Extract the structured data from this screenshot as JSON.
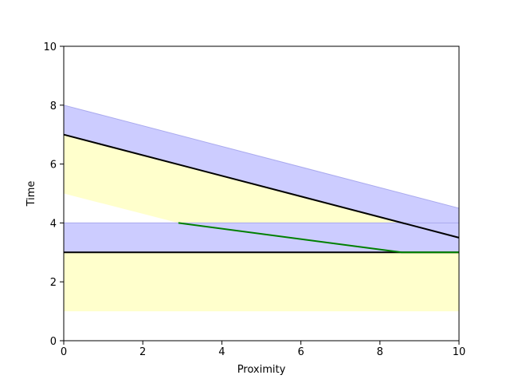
{
  "chart_data": {
    "type": "line",
    "title": "",
    "xlabel": "Proximity",
    "ylabel": "Time",
    "xlim": [
      0,
      10
    ],
    "ylim": [
      0,
      10
    ],
    "xticks": [
      0,
      2,
      4,
      6,
      8,
      10
    ],
    "yticks": [
      0,
      2,
      4,
      6,
      8,
      10
    ],
    "grid": false,
    "bands": [
      {
        "color": "#ccccff",
        "edge_color": "#aaaaee",
        "upper": [
          [
            0,
            8
          ],
          [
            10,
            4.5
          ]
        ],
        "lower": [
          [
            0,
            7
          ],
          [
            10,
            3.5
          ]
        ]
      },
      {
        "color": "#ffffcc",
        "edge_color": "none",
        "upper": [
          [
            0,
            7
          ],
          [
            10,
            3.5
          ]
        ],
        "lower": [
          [
            0,
            5
          ],
          [
            2.9,
            4
          ],
          [
            10,
            4
          ]
        ]
      },
      {
        "color": "#ccccff",
        "edge_color": "#aaaaee",
        "upper": [
          [
            0,
            4
          ],
          [
            2.9,
            4
          ],
          [
            10,
            4
          ]
        ],
        "lower": [
          [
            0,
            3
          ],
          [
            10,
            3
          ]
        ]
      },
      {
        "color": "#ffffcc",
        "edge_color": "none",
        "upper": [
          [
            0,
            3
          ],
          [
            10,
            3
          ]
        ],
        "lower": [
          [
            0,
            1
          ],
          [
            10,
            1
          ]
        ]
      }
    ],
    "series": [
      {
        "color": "#000000",
        "points": [
          [
            0,
            7
          ],
          [
            10,
            3.5
          ]
        ]
      },
      {
        "color": "#000000",
        "points": [
          [
            0,
            3
          ],
          [
            10,
            3
          ]
        ]
      },
      {
        "color": "#008000",
        "points": [
          [
            2.9,
            4
          ],
          [
            8.55,
            3
          ],
          [
            10,
            3
          ]
        ]
      }
    ]
  }
}
